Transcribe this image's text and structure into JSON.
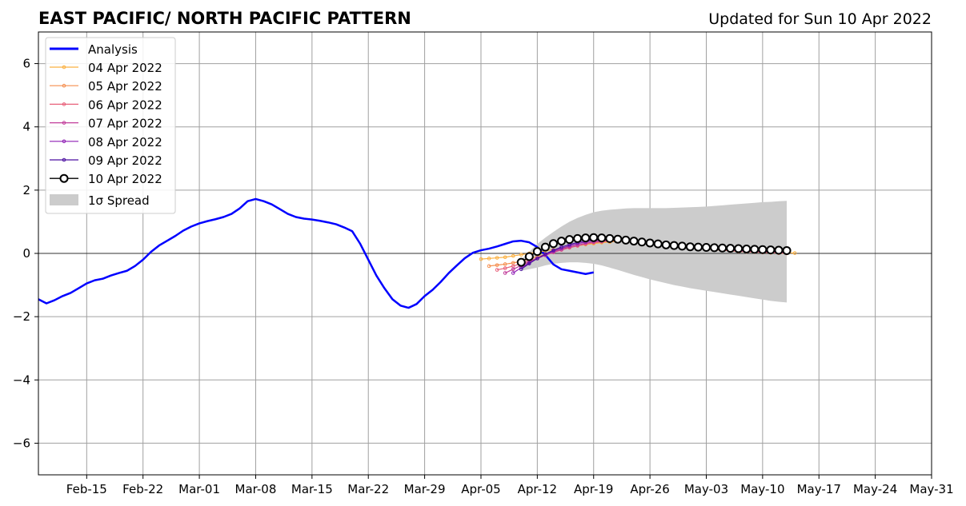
{
  "chart_data": {
    "type": "line",
    "title": "EAST PACIFIC/ NORTH PACIFIC PATTERN",
    "subtitle": "Updated for Sun 10 Apr 2022",
    "xlabel": "",
    "ylabel": "",
    "x_range": [
      "2022-02-09",
      "2022-05-31"
    ],
    "ylim": [
      -7,
      7
    ],
    "grid": true,
    "legend_position": "top-left",
    "x_ticks": [
      {
        "date": "2022-02-15",
        "label": "Feb-15"
      },
      {
        "date": "2022-02-22",
        "label": "Feb-22"
      },
      {
        "date": "2022-03-01",
        "label": "Mar-01"
      },
      {
        "date": "2022-03-08",
        "label": "Mar-08"
      },
      {
        "date": "2022-03-15",
        "label": "Mar-15"
      },
      {
        "date": "2022-03-22",
        "label": "Mar-22"
      },
      {
        "date": "2022-03-29",
        "label": "Mar-29"
      },
      {
        "date": "2022-04-05",
        "label": "Apr-05"
      },
      {
        "date": "2022-04-12",
        "label": "Apr-12"
      },
      {
        "date": "2022-04-19",
        "label": "Apr-19"
      },
      {
        "date": "2022-04-26",
        "label": "Apr-26"
      },
      {
        "date": "2022-05-03",
        "label": "May-03"
      },
      {
        "date": "2022-05-10",
        "label": "May-10"
      },
      {
        "date": "2022-05-17",
        "label": "May-17"
      },
      {
        "date": "2022-05-24",
        "label": "May-24"
      },
      {
        "date": "2022-05-31",
        "label": "May-31"
      }
    ],
    "y_ticks": [
      {
        "value": 6,
        "label": "6"
      },
      {
        "value": 4,
        "label": "4"
      },
      {
        "value": 2,
        "label": "2"
      },
      {
        "value": 0,
        "label": "0"
      },
      {
        "value": -2,
        "label": "−2"
      },
      {
        "value": -4,
        "label": "−4"
      },
      {
        "value": -6,
        "label": "−6"
      }
    ],
    "analysis": {
      "name": "Analysis",
      "color": "#0000ff",
      "start_date": "2022-02-09",
      "values": [
        -1.45,
        -1.58,
        -1.48,
        -1.35,
        -1.25,
        -1.1,
        -0.95,
        -0.85,
        -0.8,
        -0.7,
        -0.62,
        -0.55,
        -0.4,
        -0.2,
        0.05,
        0.25,
        0.4,
        0.55,
        0.72,
        0.85,
        0.95,
        1.02,
        1.08,
        1.15,
        1.25,
        1.42,
        1.65,
        1.72,
        1.65,
        1.55,
        1.4,
        1.25,
        1.15,
        1.1,
        1.07,
        1.03,
        0.98,
        0.92,
        0.82,
        0.7,
        0.3,
        -0.2,
        -0.7,
        -1.1,
        -1.45,
        -1.65,
        -1.72,
        -1.6,
        -1.35,
        -1.15,
        -0.9,
        -0.62,
        -0.38,
        -0.15,
        0.02,
        0.1,
        0.15,
        0.22,
        0.3,
        0.38,
        0.4,
        0.35,
        0.2,
        -0.05,
        -0.35,
        -0.5,
        -0.55,
        -0.6,
        -0.65,
        -0.6
      ]
    },
    "spread": {
      "name": "1σ Spread",
      "color": "#cccccc",
      "start_date": "2022-04-10",
      "upper": [
        -0.2,
        0.05,
        0.3,
        0.5,
        0.68,
        0.85,
        1.0,
        1.12,
        1.22,
        1.3,
        1.35,
        1.38,
        1.4,
        1.42,
        1.43,
        1.43,
        1.43,
        1.43,
        1.43,
        1.44,
        1.45,
        1.46,
        1.47,
        1.48,
        1.5,
        1.52,
        1.54,
        1.56,
        1.58,
        1.6,
        1.62,
        1.63,
        1.65,
        1.66
      ],
      "lower": [
        -0.55,
        -0.5,
        -0.45,
        -0.38,
        -0.33,
        -0.3,
        -0.28,
        -0.28,
        -0.3,
        -0.33,
        -0.38,
        -0.45,
        -0.52,
        -0.6,
        -0.68,
        -0.75,
        -0.82,
        -0.88,
        -0.94,
        -1.0,
        -1.05,
        -1.1,
        -1.14,
        -1.18,
        -1.22,
        -1.26,
        -1.3,
        -1.34,
        -1.38,
        -1.42,
        -1.46,
        -1.5,
        -1.53,
        -1.55
      ]
    },
    "forecasts": [
      {
        "name": "04 Apr 2022",
        "color": "#fbb040",
        "start_date": "2022-04-05",
        "values": [
          -0.18,
          -0.16,
          -0.14,
          -0.12,
          -0.08,
          -0.04,
          0.0,
          0.04,
          0.08,
          0.12,
          0.16,
          0.2,
          0.24,
          0.28,
          0.31,
          0.34,
          0.36,
          0.38,
          0.39,
          0.39,
          0.38,
          0.36,
          0.34,
          0.32,
          0.29,
          0.27,
          0.24,
          0.22,
          0.19,
          0.17,
          0.15,
          0.13,
          0.11,
          0.09,
          0.07,
          0.05,
          0.04,
          0.03,
          0.02,
          0.01
        ]
      },
      {
        "name": "05 Apr 2022",
        "color": "#f58d4d",
        "start_date": "2022-04-06",
        "values": [
          -0.4,
          -0.37,
          -0.34,
          -0.3,
          -0.25,
          -0.18,
          -0.1,
          -0.03,
          0.05,
          0.12,
          0.18,
          0.24,
          0.29,
          0.33,
          0.36,
          0.38,
          0.39,
          0.39,
          0.38,
          0.36,
          0.34,
          0.31,
          0.28,
          0.25,
          0.22,
          0.19,
          0.16,
          0.14,
          0.12,
          0.1,
          0.08,
          0.06,
          0.05,
          0.04,
          0.03,
          0.02,
          0.01,
          0.0
        ]
      },
      {
        "name": "06 Apr 2022",
        "color": "#e8607a",
        "start_date": "2022-04-07",
        "values": [
          -0.52,
          -0.47,
          -0.4,
          -0.32,
          -0.24,
          -0.15,
          -0.06,
          0.03,
          0.11,
          0.18,
          0.24,
          0.3,
          0.34,
          0.37,
          0.39,
          0.4,
          0.4,
          0.39,
          0.37,
          0.35,
          0.32,
          0.29,
          0.26,
          0.23,
          0.2,
          0.17,
          0.15,
          0.13,
          0.11,
          0.09,
          0.07,
          0.06,
          0.05,
          0.04,
          0.03,
          0.02,
          0.01
        ]
      },
      {
        "name": "07 Apr 2022",
        "color": "#c13c9a",
        "start_date": "2022-04-08",
        "values": [
          -0.62,
          -0.5,
          -0.38,
          -0.27,
          -0.16,
          -0.06,
          0.04,
          0.12,
          0.2,
          0.26,
          0.32,
          0.36,
          0.39,
          0.41,
          0.42,
          0.41,
          0.4,
          0.38,
          0.36,
          0.33,
          0.3,
          0.27,
          0.24,
          0.21,
          0.18,
          0.16,
          0.14,
          0.12,
          0.1,
          0.08,
          0.07,
          0.06,
          0.05,
          0.04,
          0.03,
          0.02
        ]
      },
      {
        "name": "08 Apr 2022",
        "color": "#8e1db4",
        "start_date": "2022-04-09",
        "values": [
          -0.62,
          -0.45,
          -0.3,
          -0.16,
          -0.04,
          0.07,
          0.16,
          0.24,
          0.31,
          0.36,
          0.4,
          0.42,
          0.43,
          0.43,
          0.42,
          0.4,
          0.38,
          0.35,
          0.32,
          0.29,
          0.26,
          0.23,
          0.21,
          0.19,
          0.17,
          0.15,
          0.13,
          0.12,
          0.1,
          0.09,
          0.08,
          0.07,
          0.06,
          0.05,
          0.04
        ]
      },
      {
        "name": "09 Apr 2022",
        "color": "#4b0fa0",
        "start_date": "2022-04-10",
        "values": [
          -0.5,
          -0.32,
          -0.16,
          -0.02,
          0.1,
          0.2,
          0.28,
          0.35,
          0.4,
          0.43,
          0.45,
          0.45,
          0.44,
          0.42,
          0.4,
          0.37,
          0.34,
          0.31,
          0.28,
          0.25,
          0.23,
          0.21,
          0.19,
          0.17,
          0.15,
          0.14,
          0.13,
          0.12,
          0.11,
          0.1,
          0.09,
          0.08,
          0.07,
          0.06
        ]
      },
      {
        "name": "10 Apr 2022",
        "color": "#000000",
        "start_date": "2022-04-10",
        "values": [
          -0.28,
          -0.1,
          0.06,
          0.2,
          0.31,
          0.39,
          0.44,
          0.47,
          0.49,
          0.5,
          0.49,
          0.47,
          0.45,
          0.42,
          0.39,
          0.36,
          0.33,
          0.3,
          0.27,
          0.25,
          0.23,
          0.21,
          0.2,
          0.19,
          0.18,
          0.17,
          0.16,
          0.15,
          0.14,
          0.13,
          0.12,
          0.11,
          0.1,
          0.09
        ]
      }
    ]
  },
  "legend": {
    "analysis_label": "Analysis",
    "items": [
      "04 Apr 2022",
      "05 Apr 2022",
      "06 Apr 2022",
      "07 Apr 2022",
      "08 Apr 2022",
      "09 Apr 2022",
      "10 Apr 2022"
    ],
    "spread_label": "1σ Spread"
  }
}
